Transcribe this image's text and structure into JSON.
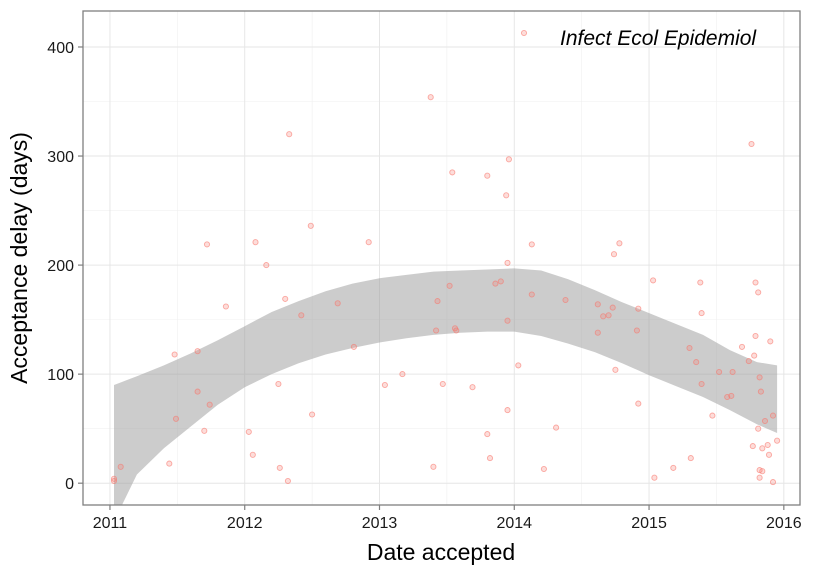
{
  "chart_data": {
    "type": "scatter",
    "xlabel": "Date accepted",
    "ylabel": "Acceptance delay (days)",
    "x_ticks": [
      "2011",
      "2012",
      "2013",
      "2014",
      "2015",
      "2016"
    ],
    "y_ticks": [
      "0",
      "100",
      "200",
      "300",
      "400"
    ],
    "xlim": [
      2010.8,
      2016.12
    ],
    "ylim": [
      -20,
      433
    ],
    "grid": true,
    "legend_position": "top-right",
    "series": [
      {
        "name": "Infect Ecol Epidemiol",
        "color": "#f8766d",
        "points": [
          [
            2011.03,
            4
          ],
          [
            2011.03,
            2
          ],
          [
            2011.08,
            15
          ],
          [
            2011.44,
            18
          ],
          [
            2011.48,
            118
          ],
          [
            2011.49,
            59
          ],
          [
            2011.65,
            121
          ],
          [
            2011.65,
            84
          ],
          [
            2011.7,
            48
          ],
          [
            2011.72,
            219
          ],
          [
            2011.74,
            72
          ],
          [
            2011.86,
            162
          ],
          [
            2012.03,
            47
          ],
          [
            2012.06,
            26
          ],
          [
            2012.08,
            221
          ],
          [
            2012.16,
            200
          ],
          [
            2012.25,
            91
          ],
          [
            2012.26,
            14
          ],
          [
            2012.3,
            169
          ],
          [
            2012.32,
            2
          ],
          [
            2012.33,
            320
          ],
          [
            2012.42,
            154
          ],
          [
            2012.49,
            236
          ],
          [
            2012.5,
            63
          ],
          [
            2012.69,
            165
          ],
          [
            2012.81,
            125
          ],
          [
            2012.92,
            221
          ],
          [
            2013.04,
            90
          ],
          [
            2013.17,
            100
          ],
          [
            2013.38,
            354
          ],
          [
            2013.4,
            15
          ],
          [
            2013.42,
            140
          ],
          [
            2013.43,
            167
          ],
          [
            2013.47,
            91
          ],
          [
            2013.52,
            181
          ],
          [
            2013.54,
            285
          ],
          [
            2013.56,
            142
          ],
          [
            2013.57,
            140
          ],
          [
            2013.69,
            88
          ],
          [
            2013.8,
            282
          ],
          [
            2013.8,
            45
          ],
          [
            2013.82,
            23
          ],
          [
            2013.86,
            183
          ],
          [
            2013.9,
            185
          ],
          [
            2013.94,
            264
          ],
          [
            2013.95,
            202
          ],
          [
            2013.95,
            149
          ],
          [
            2013.95,
            67
          ],
          [
            2013.96,
            297
          ],
          [
            2014.03,
            108
          ],
          [
            2014.13,
            173
          ],
          [
            2014.13,
            219
          ],
          [
            2014.22,
            13
          ],
          [
            2014.31,
            51
          ],
          [
            2014.38,
            168
          ],
          [
            2014.62,
            138
          ],
          [
            2014.62,
            164
          ],
          [
            2014.66,
            153
          ],
          [
            2014.7,
            154
          ],
          [
            2014.73,
            161
          ],
          [
            2014.74,
            210
          ],
          [
            2014.75,
            104
          ],
          [
            2014.78,
            220
          ],
          [
            2014.91,
            140
          ],
          [
            2014.92,
            160
          ],
          [
            2014.92,
            73
          ],
          [
            2015.03,
            186
          ],
          [
            2015.04,
            5
          ],
          [
            2015.18,
            14
          ],
          [
            2015.3,
            124
          ],
          [
            2015.31,
            23
          ],
          [
            2015.35,
            111
          ],
          [
            2015.38,
            184
          ],
          [
            2015.39,
            156
          ],
          [
            2015.39,
            91
          ],
          [
            2015.47,
            62
          ],
          [
            2015.52,
            102
          ],
          [
            2015.58,
            79
          ],
          [
            2015.61,
            80
          ],
          [
            2015.62,
            102
          ],
          [
            2015.69,
            125
          ],
          [
            2015.74,
            112
          ],
          [
            2015.76,
            311
          ],
          [
            2015.77,
            34
          ],
          [
            2015.78,
            117
          ],
          [
            2015.79,
            184
          ],
          [
            2015.79,
            135
          ],
          [
            2015.81,
            175
          ],
          [
            2015.81,
            50
          ],
          [
            2015.82,
            12
          ],
          [
            2015.82,
            5
          ],
          [
            2015.82,
            97
          ],
          [
            2015.83,
            84
          ],
          [
            2015.84,
            11
          ],
          [
            2015.84,
            32
          ],
          [
            2015.86,
            57
          ],
          [
            2015.88,
            35
          ],
          [
            2015.89,
            26
          ],
          [
            2015.9,
            130
          ],
          [
            2015.92,
            1
          ],
          [
            2015.92,
            62
          ],
          [
            2015.95,
            39
          ]
        ]
      }
    ],
    "smooth_band": {
      "color": "#999999",
      "x": [
        2011.03,
        2011.2,
        2011.4,
        2011.6,
        2011.8,
        2012.0,
        2012.2,
        2012.4,
        2012.6,
        2012.8,
        2013.0,
        2013.2,
        2013.4,
        2013.6,
        2013.8,
        2014.0,
        2014.2,
        2014.4,
        2014.6,
        2014.8,
        2015.0,
        2015.2,
        2015.4,
        2015.6,
        2015.8,
        2015.95
      ],
      "upper": [
        90,
        98,
        108,
        119,
        131,
        144,
        157,
        167,
        176,
        183,
        188,
        191,
        194,
        195,
        196,
        197,
        195,
        187,
        177,
        166,
        156,
        146,
        136,
        122,
        111,
        108
      ],
      "lower": [
        -35,
        8,
        32,
        52,
        72,
        88,
        100,
        110,
        118,
        124,
        129,
        133,
        136,
        138,
        139,
        139,
        135,
        128,
        120,
        110,
        99,
        89,
        79,
        67,
        54,
        46
      ]
    }
  }
}
